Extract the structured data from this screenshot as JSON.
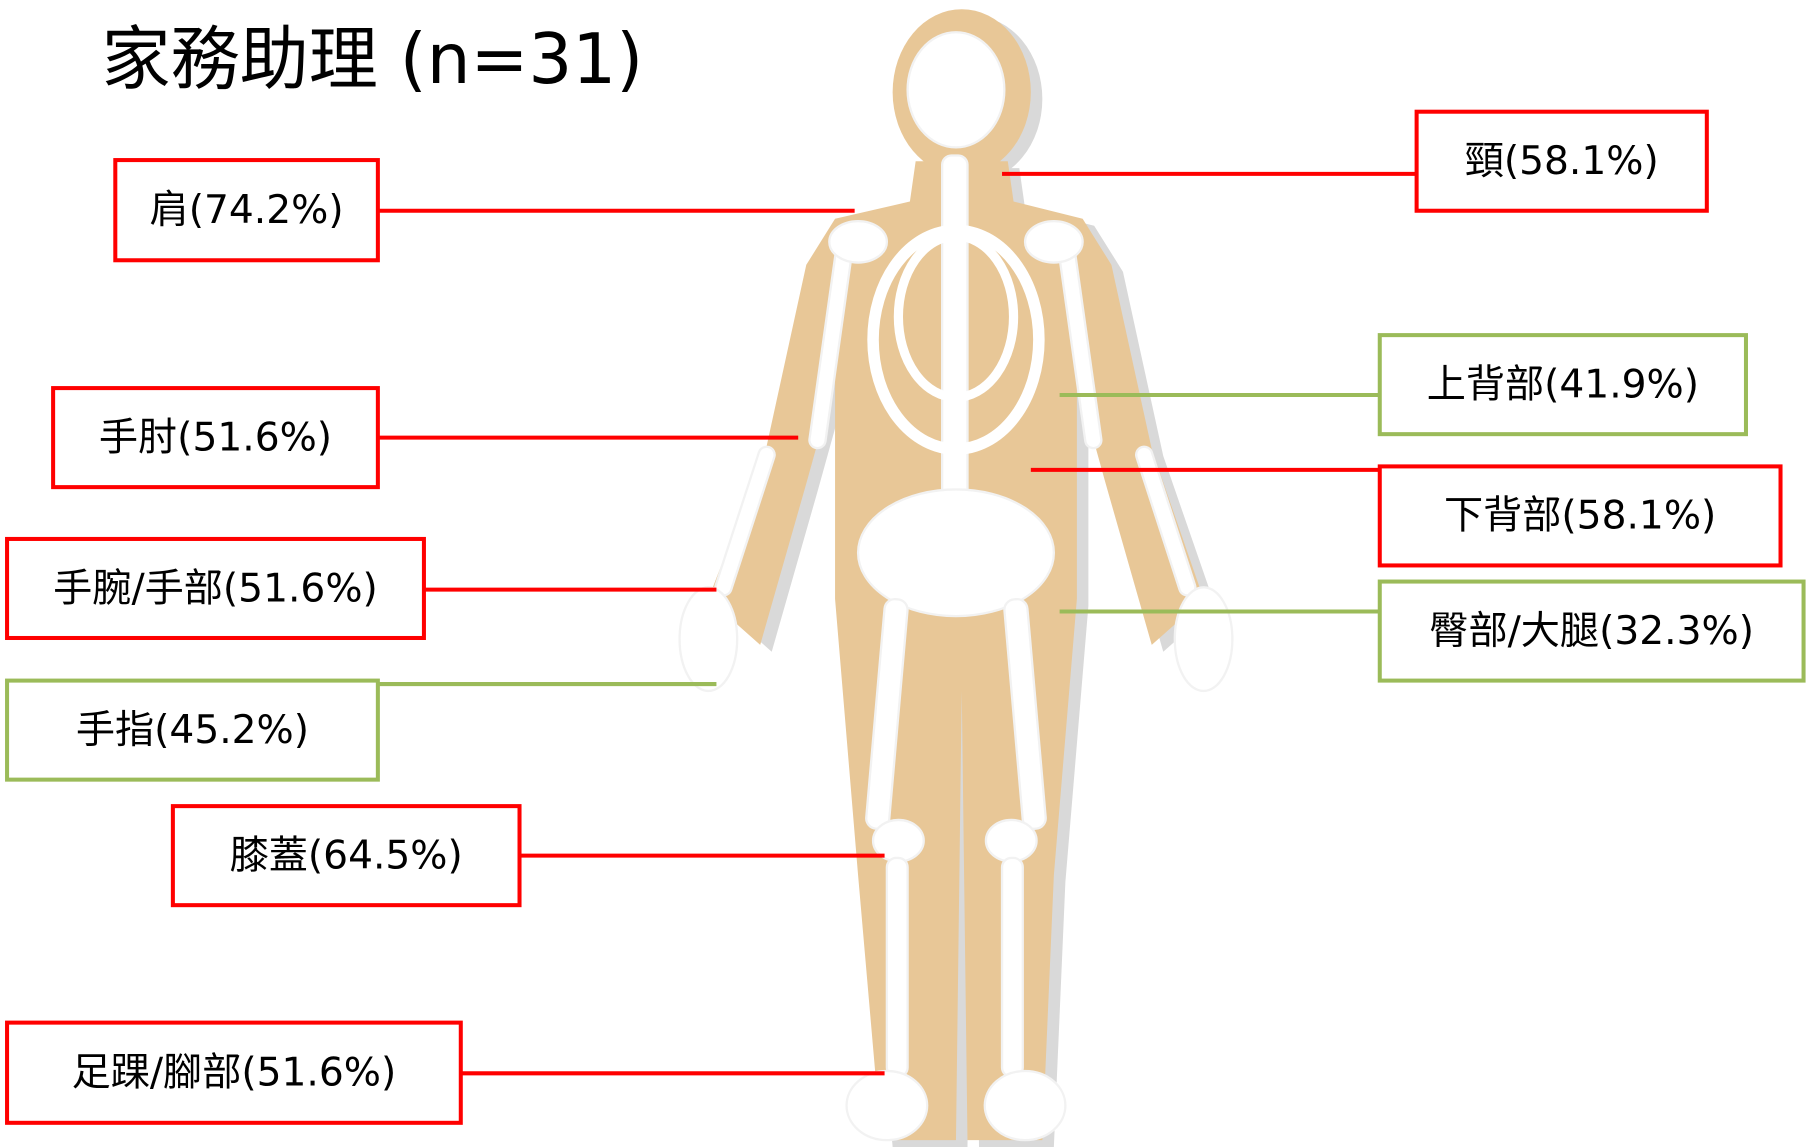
{
  "title": "家務助理 (n=31)",
  "labels": [
    {
      "text": "肩(74.2%)",
      "color": "#ff0000"
    },
    {
      "text": "頸(58.1%)",
      "color": "#ff0000"
    },
    {
      "text": "上背部(41.9%)",
      "color": "#9bbb59"
    },
    {
      "text": "手肘(51.6%)",
      "color": "#ff0000"
    },
    {
      "text": "下背部(58.1%)",
      "color": "#ff0000"
    },
    {
      "text": "手腕/手部(51.6%)",
      "color": "#ff0000"
    },
    {
      "text": "臀部/大腿(32.3%)",
      "color": "#9bbb59"
    },
    {
      "text": "手指(45.2%)",
      "color": "#9bbb59"
    },
    {
      "text": "膝蓋(64.5%)",
      "color": "#ff0000"
    },
    {
      "text": "足踝/腳部(51.6%)",
      "color": "#ff0000"
    }
  ]
}
